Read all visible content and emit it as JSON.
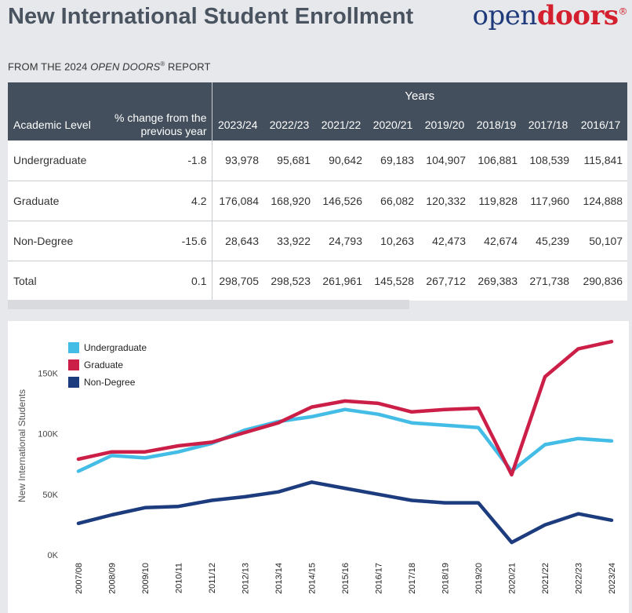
{
  "header": {
    "title": "New International Student Enrollment",
    "subtitle_prefix": "FROM THE 2024 ",
    "subtitle_italic": "OPEN DOORS",
    "subtitle_reg": "®",
    "subtitle_suffix": " REPORT",
    "logo_open": "open",
    "logo_doors": "doors",
    "logo_reg": "®"
  },
  "table": {
    "years_label": "Years",
    "col_level": "Academic Level",
    "col_pct": "% change from the previous year",
    "years": [
      "2023/24",
      "2022/23",
      "2021/22",
      "2020/21",
      "2019/20",
      "2018/19",
      "2017/18",
      "2016/17"
    ],
    "rows": [
      {
        "level": "Undergraduate",
        "pct": "-1.8",
        "values": [
          "93,978",
          "95,681",
          "90,642",
          "69,183",
          "104,907",
          "106,881",
          "108,539",
          "115,841"
        ]
      },
      {
        "level": "Graduate",
        "pct": "4.2",
        "values": [
          "176,084",
          "168,920",
          "146,526",
          "66,082",
          "120,332",
          "119,828",
          "117,960",
          "124,888"
        ]
      },
      {
        "level": "Non-Degree",
        "pct": "-15.6",
        "values": [
          "28,643",
          "33,922",
          "24,793",
          "10,263",
          "42,473",
          "42,674",
          "45,239",
          "50,107"
        ]
      },
      {
        "level": "Total",
        "pct": "0.1",
        "values": [
          "298,705",
          "298,523",
          "261,961",
          "145,528",
          "267,712",
          "269,383",
          "271,738",
          "290,836"
        ]
      }
    ]
  },
  "chart_data": {
    "type": "line",
    "title": "",
    "xlabel": "",
    "ylabel": "New International Students",
    "ylim": [
      0,
      180000
    ],
    "yticks": [
      0,
      50000,
      100000,
      150000
    ],
    "ytick_labels": [
      "0K",
      "50K",
      "100K",
      "150K"
    ],
    "legend_position": "top-left",
    "grid": false,
    "x": [
      "2007/08",
      "2008/09",
      "2009/10",
      "2010/11",
      "2011/12",
      "2012/13",
      "2013/14",
      "2014/15",
      "2015/16",
      "2016/17",
      "2017/18",
      "2018/19",
      "2019/20",
      "2020/21",
      "2021/22",
      "2022/23",
      "2023/24"
    ],
    "series": [
      {
        "name": "Undergraduate",
        "color": "#44bde6",
        "values": [
          69000,
          82000,
          80000,
          85000,
          92000,
          103000,
          110000,
          114000,
          120000,
          116000,
          109000,
          107000,
          105000,
          69183,
          91000,
          96000,
          94000
        ]
      },
      {
        "name": "Graduate",
        "color": "#cc1f47",
        "values": [
          79000,
          85000,
          85000,
          90000,
          93000,
          101000,
          109000,
          122000,
          127000,
          125000,
          118000,
          120000,
          121000,
          66082,
          147000,
          170000,
          176000
        ]
      },
      {
        "name": "Non-Degree",
        "color": "#1c3c7e",
        "values": [
          26000,
          33000,
          39000,
          40000,
          45000,
          48000,
          52000,
          60000,
          55000,
          50000,
          45000,
          43000,
          43000,
          10263,
          24793,
          33922,
          28643
        ]
      }
    ]
  }
}
